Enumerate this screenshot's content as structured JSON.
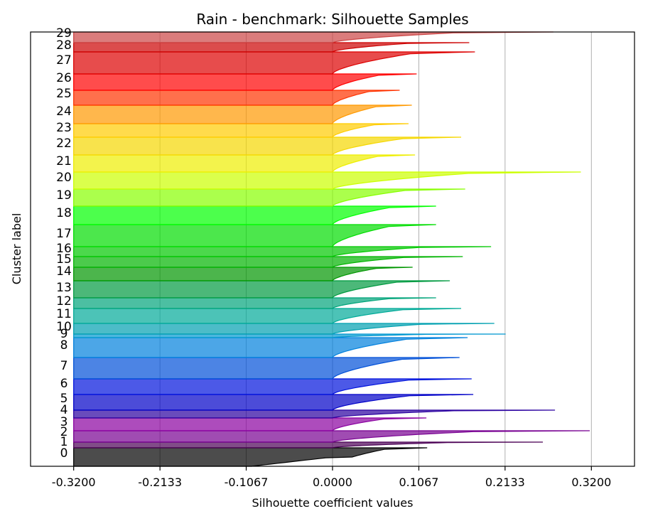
{
  "chart_data": {
    "type": "silhouette",
    "title": "Rain - benchmark: Silhouette Samples",
    "xlabel": "Silhouette coefficient values",
    "ylabel": "Cluster label",
    "xlim": [
      -0.3733,
      0.3733
    ],
    "x_ticks": [
      "-0.3200",
      "-0.2133",
      "-0.1067",
      "0.0000",
      "0.1067",
      "0.2133",
      "0.3200"
    ],
    "x_tick_values": [
      -0.32,
      -0.2133,
      -0.1067,
      0.0,
      0.1067,
      0.2133,
      0.32
    ],
    "grid": "vertical",
    "fill_opacity": 0.7,
    "clusters": [
      {
        "label": "0",
        "min": -0.32,
        "max": 0.117,
        "color": "#000000"
      },
      {
        "label": "1",
        "min": -0.32,
        "max": 0.26,
        "color": "#4b0055"
      },
      {
        "label": "2",
        "min": -0.32,
        "max": 0.318,
        "color": "#780092"
      },
      {
        "label": "3",
        "min": -0.32,
        "max": 0.116,
        "color": "#8a00a0"
      },
      {
        "label": "4",
        "min": -0.32,
        "max": 0.275,
        "color": "#2a00a0"
      },
      {
        "label": "5",
        "min": -0.32,
        "max": 0.174,
        "color": "#0000c8"
      },
      {
        "label": "6",
        "min": -0.32,
        "max": 0.172,
        "color": "#0012dd"
      },
      {
        "label": "7",
        "min": -0.32,
        "max": 0.157,
        "color": "#0050d8"
      },
      {
        "label": "8",
        "min": -0.32,
        "max": 0.167,
        "color": "#0080dd"
      },
      {
        "label": "9",
        "min": -0.32,
        "max": 0.214,
        "color": "#0098d0"
      },
      {
        "label": "10",
        "min": -0.32,
        "max": 0.2,
        "color": "#00a0b0"
      },
      {
        "label": "11",
        "min": -0.32,
        "max": 0.159,
        "color": "#00aa98"
      },
      {
        "label": "12",
        "min": -0.32,
        "max": 0.128,
        "color": "#00a47a"
      },
      {
        "label": "13",
        "min": -0.32,
        "max": 0.145,
        "color": "#009a40"
      },
      {
        "label": "14",
        "min": -0.32,
        "max": 0.099,
        "color": "#009600"
      },
      {
        "label": "15",
        "min": -0.32,
        "max": 0.161,
        "color": "#00b400"
      },
      {
        "label": "16",
        "min": -0.32,
        "max": 0.196,
        "color": "#00c800"
      },
      {
        "label": "17",
        "min": -0.32,
        "max": 0.128,
        "color": "#00dd00"
      },
      {
        "label": "18",
        "min": -0.32,
        "max": 0.128,
        "color": "#00ff00"
      },
      {
        "label": "19",
        "min": -0.32,
        "max": 0.164,
        "color": "#88ff00"
      },
      {
        "label": "20",
        "min": -0.32,
        "max": 0.307,
        "color": "#ccff00"
      },
      {
        "label": "21",
        "min": -0.32,
        "max": 0.102,
        "color": "#eeee00"
      },
      {
        "label": "22",
        "min": -0.32,
        "max": 0.159,
        "color": "#f5d700"
      },
      {
        "label": "23",
        "min": -0.32,
        "max": 0.094,
        "color": "#ffcc00"
      },
      {
        "label": "24",
        "min": -0.32,
        "max": 0.098,
        "color": "#ff9900"
      },
      {
        "label": "25",
        "min": -0.32,
        "max": 0.083,
        "color": "#ff3300"
      },
      {
        "label": "26",
        "min": -0.32,
        "max": 0.104,
        "color": "#ff0000"
      },
      {
        "label": "27",
        "min": -0.32,
        "max": 0.176,
        "color": "#dd0000"
      },
      {
        "label": "28",
        "min": -0.32,
        "max": 0.169,
        "color": "#cc0000"
      },
      {
        "label": "29",
        "min": -0.32,
        "max": 0.273,
        "color": "#cc4444"
      }
    ]
  }
}
